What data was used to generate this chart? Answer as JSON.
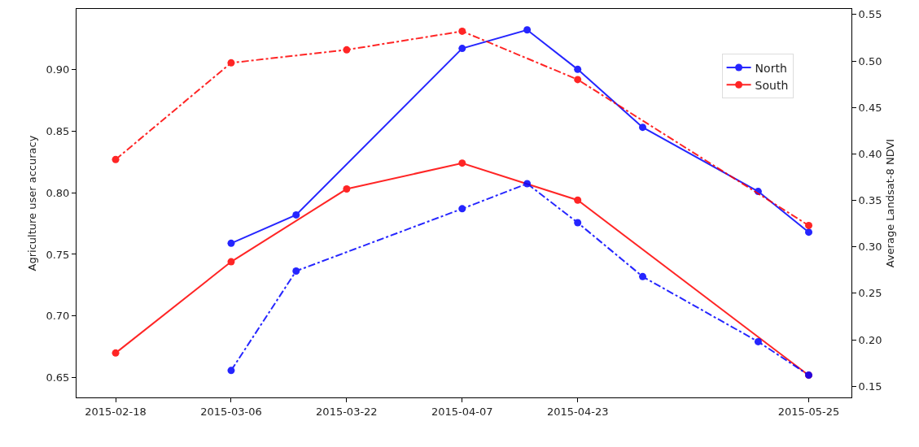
{
  "chart_data": {
    "type": "line",
    "xlabel": null,
    "ylabel": "Agriculture user accuracy",
    "y2label": "Average Landsat-8 NDVI",
    "xlim": [
      "2015-02-12T14:00",
      "2015-05-30T22:00"
    ],
    "xticks": [
      "2015-02-18",
      "2015-03-06",
      "2015-03-22",
      "2015-04-07",
      "2015-04-23",
      "2015-05-25"
    ],
    "ylim": [
      0.634,
      0.949
    ],
    "yticks": [
      0.65,
      {
        "value": 0.7,
        "label": "0.70"
      },
      0.75,
      {
        "value": 0.8,
        "label": "0.80"
      },
      0.85,
      {
        "value": 0.9,
        "label": "0.90"
      }
    ],
    "y2lim": [
      0.138,
      0.556
    ],
    "y2ticks": [
      0.15,
      {
        "value": 0.2,
        "label": "0.20"
      },
      0.25,
      {
        "value": 0.3,
        "label": "0.30"
      },
      0.35,
      {
        "value": 0.4,
        "label": "0.40"
      },
      0.45,
      {
        "value": 0.5,
        "label": "0.50"
      },
      0.55
    ],
    "legend": "top right",
    "marker": "circle",
    "series": [
      {
        "name": "North",
        "color": "#0000ff",
        "line_style": "solid",
        "x": [
          "2015-03-06",
          "2015-03-15",
          "2015-04-07",
          "2015-04-16",
          "2015-04-23",
          "2015-05-02",
          "2015-05-18",
          "2015-05-25"
        ],
        "values": [
          0.759,
          0.782,
          0.917,
          0.932,
          0.9,
          0.853,
          0.801,
          0.768
        ]
      },
      {
        "name": "South",
        "color": "#ff0000",
        "line_style": "solid",
        "x": [
          "2015-02-18",
          "2015-03-06",
          "2015-03-22",
          "2015-04-07",
          "2015-04-23",
          "2015-05-25"
        ],
        "values": [
          0.67,
          0.744,
          0.803,
          0.824,
          0.794,
          0.652
        ]
      },
      {
        "color": "#0000ff",
        "line_style": "dashdot",
        "axis": "y2",
        "x": [
          "2015-03-06",
          "2015-03-15",
          "2015-04-07",
          "2015-04-16",
          "2015-04-23",
          "2015-05-02",
          "2015-05-18",
          "2015-05-25"
        ],
        "values": [
          0.167,
          0.274,
          0.341,
          0.368,
          0.326,
          0.268,
          0.198,
          0.162
        ]
      },
      {
        "color": "#ff0000",
        "line_style": "dashdot",
        "axis": "y2",
        "x": [
          "2015-02-18",
          "2015-03-06",
          "2015-03-22",
          "2015-04-07",
          "2015-04-23",
          "2015-05-25"
        ],
        "values": [
          0.394,
          0.498,
          0.512,
          0.532,
          0.48,
          0.323
        ]
      }
    ]
  }
}
